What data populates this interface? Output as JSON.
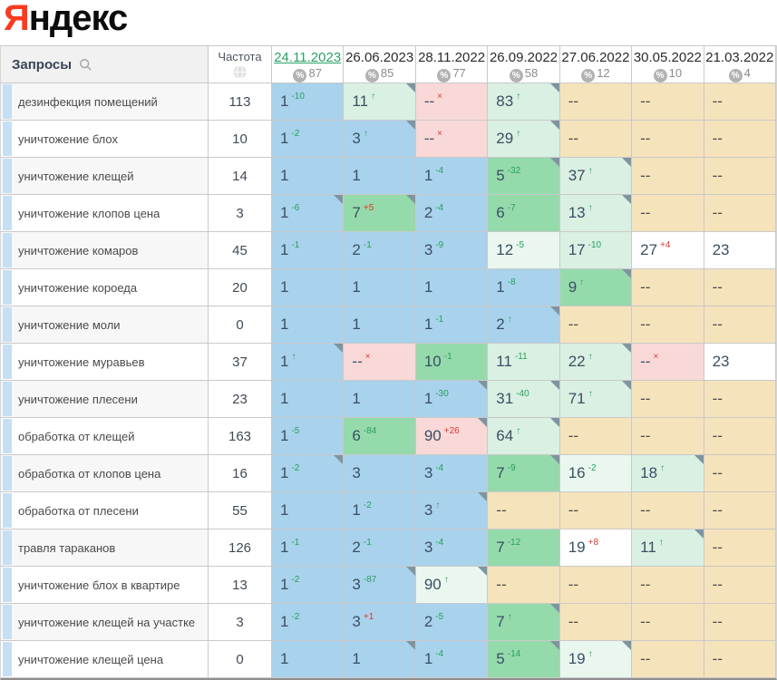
{
  "logo": {
    "red": "Я",
    "rest": "ндекс"
  },
  "colors": {
    "accent_green": "#2aa265",
    "delta_green": "#27a05c",
    "delta_red": "#e0382c",
    "cell_blue": "#a9d2ec",
    "cell_green": "#95daab",
    "cell_mint": "#d9f0e2",
    "cell_palemint": "#e9f7ef",
    "cell_pink": "#f9d8d8",
    "cell_tan": "#f5e3bb",
    "logo_red": "#fb3b1e",
    "row_marker_blue": "#c6dff3"
  },
  "table": {
    "query_header": "Запросы",
    "freq_header": "Частота",
    "columns": [
      {
        "date": "24.11.2023",
        "count": "87",
        "active": true
      },
      {
        "date": "26.06.2023",
        "count": "85"
      },
      {
        "date": "28.11.2022",
        "count": "77"
      },
      {
        "date": "26.09.2022",
        "count": "58"
      },
      {
        "date": "27.06.2022",
        "count": "12"
      },
      {
        "date": "30.05.2022",
        "count": "10"
      },
      {
        "date": "21.03.2022",
        "count": "4"
      }
    ],
    "rows": [
      {
        "query": "дезинфекция помещений",
        "freq": "113",
        "cells": [
          {
            "v": "1",
            "sup": "-10",
            "t": "g",
            "bg": "blue"
          },
          {
            "v": "11",
            "sup": "↑",
            "t": "g",
            "bg": "mint",
            "fold": true
          },
          {
            "v": "--",
            "sup": "×",
            "t": "r",
            "bg": "pink"
          },
          {
            "v": "83",
            "sup": "↑",
            "t": "g",
            "bg": "mint",
            "fold": true
          },
          {
            "v": "--",
            "bg": "tan"
          },
          {
            "v": "--",
            "bg": "tan"
          },
          {
            "v": "--",
            "bg": "tan"
          }
        ]
      },
      {
        "query": "уничтожение блох",
        "freq": "10",
        "cells": [
          {
            "v": "1",
            "sup": "-2",
            "t": "g",
            "bg": "blue"
          },
          {
            "v": "3",
            "sup": "↑",
            "t": "g",
            "bg": "blue",
            "fold": true
          },
          {
            "v": "--",
            "sup": "×",
            "t": "r",
            "bg": "pink"
          },
          {
            "v": "29",
            "sup": "↑",
            "t": "g",
            "bg": "mint",
            "fold": true
          },
          {
            "v": "--",
            "bg": "tan"
          },
          {
            "v": "--",
            "bg": "tan"
          },
          {
            "v": "--",
            "bg": "tan"
          }
        ]
      },
      {
        "query": "уничтожение клещей",
        "freq": "14",
        "cells": [
          {
            "v": "1",
            "bg": "blue"
          },
          {
            "v": "1",
            "bg": "blue"
          },
          {
            "v": "1",
            "sup": "-4",
            "t": "g",
            "bg": "blue"
          },
          {
            "v": "5",
            "sup": "-32",
            "t": "g",
            "bg": "green",
            "fold": true
          },
          {
            "v": "37",
            "sup": "↑",
            "t": "g",
            "bg": "mint",
            "fold": true
          },
          {
            "v": "--",
            "bg": "tan"
          },
          {
            "v": "--",
            "bg": "tan"
          }
        ]
      },
      {
        "query": "уничтожение клопов цена",
        "freq": "3",
        "cells": [
          {
            "v": "1",
            "sup": "-6",
            "t": "g",
            "bg": "blue",
            "fold": true
          },
          {
            "v": "7",
            "sup": "+5",
            "t": "r",
            "bg": "green",
            "fold": true
          },
          {
            "v": "2",
            "sup": "-4",
            "t": "g",
            "bg": "blue"
          },
          {
            "v": "6",
            "sup": "-7",
            "t": "g",
            "bg": "green"
          },
          {
            "v": "13",
            "sup": "↑",
            "t": "g",
            "bg": "mint",
            "fold": true
          },
          {
            "v": "--",
            "bg": "tan"
          },
          {
            "v": "--",
            "bg": "tan"
          }
        ]
      },
      {
        "query": "уничтожение комаров",
        "freq": "45",
        "cells": [
          {
            "v": "1",
            "sup": "-1",
            "t": "g",
            "bg": "blue"
          },
          {
            "v": "2",
            "sup": "-1",
            "t": "g",
            "bg": "blue"
          },
          {
            "v": "3",
            "sup": "-9",
            "t": "g",
            "bg": "blue"
          },
          {
            "v": "12",
            "sup": "-5",
            "t": "g",
            "bg": "palemint"
          },
          {
            "v": "17",
            "sup": "-10",
            "t": "g",
            "bg": "mint"
          },
          {
            "v": "27",
            "sup": "+4",
            "t": "r",
            "bg": "white"
          },
          {
            "v": "23",
            "bg": "white"
          }
        ]
      },
      {
        "query": "уничтожение короеда",
        "freq": "20",
        "cells": [
          {
            "v": "1",
            "bg": "blue"
          },
          {
            "v": "1",
            "bg": "blue"
          },
          {
            "v": "1",
            "bg": "blue"
          },
          {
            "v": "1",
            "sup": "-8",
            "t": "g",
            "bg": "blue"
          },
          {
            "v": "9",
            "sup": "↑",
            "t": "g",
            "bg": "green",
            "fold": true
          },
          {
            "v": "--",
            "bg": "tan"
          },
          {
            "v": "--",
            "bg": "tan"
          }
        ]
      },
      {
        "query": "уничтожение моли",
        "freq": "0",
        "cells": [
          {
            "v": "1",
            "bg": "blue"
          },
          {
            "v": "1",
            "bg": "blue"
          },
          {
            "v": "1",
            "sup": "-1",
            "t": "g",
            "bg": "blue"
          },
          {
            "v": "2",
            "sup": "↑",
            "t": "g",
            "bg": "blue",
            "fold": true
          },
          {
            "v": "--",
            "bg": "tan"
          },
          {
            "v": "--",
            "bg": "tan"
          },
          {
            "v": "--",
            "bg": "tan"
          }
        ]
      },
      {
        "query": "уничтожение муравьев",
        "freq": "37",
        "cells": [
          {
            "v": "1",
            "sup": "↑",
            "t": "g",
            "bg": "blue",
            "fold": true
          },
          {
            "v": "--",
            "sup": "×",
            "t": "r",
            "bg": "pink"
          },
          {
            "v": "10",
            "sup": "-1",
            "t": "g",
            "bg": "green"
          },
          {
            "v": "11",
            "sup": "-11",
            "t": "g",
            "bg": "mint"
          },
          {
            "v": "22",
            "sup": "↑",
            "t": "g",
            "bg": "mint",
            "fold": true
          },
          {
            "v": "--",
            "sup": "×",
            "t": "r",
            "bg": "pink"
          },
          {
            "v": "23",
            "bg": "white"
          }
        ]
      },
      {
        "query": "уничтожение плесени",
        "freq": "23",
        "cells": [
          {
            "v": "1",
            "bg": "blue"
          },
          {
            "v": "1",
            "bg": "blue"
          },
          {
            "v": "1",
            "sup": "-30",
            "t": "g",
            "bg": "blue",
            "fold": true
          },
          {
            "v": "31",
            "sup": "-40",
            "t": "g",
            "bg": "mint",
            "fold": true
          },
          {
            "v": "71",
            "sup": "↑",
            "t": "g",
            "bg": "mint",
            "fold": true
          },
          {
            "v": "--",
            "bg": "tan"
          },
          {
            "v": "--",
            "bg": "tan"
          }
        ]
      },
      {
        "query": "обработка от клещей",
        "freq": "163",
        "cells": [
          {
            "v": "1",
            "sup": "-5",
            "t": "g",
            "bg": "blue"
          },
          {
            "v": "6",
            "sup": "-84",
            "t": "g",
            "bg": "green"
          },
          {
            "v": "90",
            "sup": "+26",
            "t": "r",
            "bg": "pink",
            "fold": true
          },
          {
            "v": "64",
            "sup": "↑",
            "t": "g",
            "bg": "mint",
            "fold": true
          },
          {
            "v": "--",
            "bg": "tan"
          },
          {
            "v": "--",
            "bg": "tan"
          },
          {
            "v": "--",
            "bg": "tan"
          }
        ]
      },
      {
        "query": "обработка от клопов цена",
        "freq": "16",
        "cells": [
          {
            "v": "1",
            "sup": "-2",
            "t": "g",
            "bg": "blue",
            "fold": true
          },
          {
            "v": "3",
            "bg": "blue"
          },
          {
            "v": "3",
            "sup": "-4",
            "t": "g",
            "bg": "blue"
          },
          {
            "v": "7",
            "sup": "-9",
            "t": "g",
            "bg": "green",
            "fold": true
          },
          {
            "v": "16",
            "sup": "-2",
            "t": "g",
            "bg": "palemint"
          },
          {
            "v": "18",
            "sup": "↑",
            "t": "g",
            "bg": "mint",
            "fold": true
          },
          {
            "v": "--",
            "bg": "tan"
          }
        ]
      },
      {
        "query": "обработка от плесени",
        "freq": "55",
        "cells": [
          {
            "v": "1",
            "bg": "blue"
          },
          {
            "v": "1",
            "sup": "-2",
            "t": "g",
            "bg": "blue"
          },
          {
            "v": "3",
            "sup": "↑",
            "t": "g",
            "bg": "blue",
            "fold": true
          },
          {
            "v": "--",
            "bg": "tan"
          },
          {
            "v": "--",
            "bg": "tan"
          },
          {
            "v": "--",
            "bg": "tan"
          },
          {
            "v": "--",
            "bg": "tan"
          }
        ]
      },
      {
        "query": "травля тараканов",
        "freq": "126",
        "cells": [
          {
            "v": "1",
            "sup": "-1",
            "t": "g",
            "bg": "blue"
          },
          {
            "v": "2",
            "sup": "-1",
            "t": "g",
            "bg": "blue"
          },
          {
            "v": "3",
            "sup": "-4",
            "t": "g",
            "bg": "blue"
          },
          {
            "v": "7",
            "sup": "-12",
            "t": "g",
            "bg": "green"
          },
          {
            "v": "19",
            "sup": "+8",
            "t": "r",
            "bg": "white"
          },
          {
            "v": "11",
            "sup": "↑",
            "t": "g",
            "bg": "mint",
            "fold": true
          },
          {
            "v": "--",
            "bg": "tan"
          }
        ]
      },
      {
        "query": "уничтожение блох в квартире",
        "freq": "13",
        "cells": [
          {
            "v": "1",
            "sup": "-2",
            "t": "g",
            "bg": "blue"
          },
          {
            "v": "3",
            "sup": "-87",
            "t": "g",
            "bg": "blue",
            "fold": true
          },
          {
            "v": "90",
            "sup": "↑",
            "t": "g",
            "bg": "palemint",
            "fold": true
          },
          {
            "v": "--",
            "bg": "tan"
          },
          {
            "v": "--",
            "bg": "tan"
          },
          {
            "v": "--",
            "bg": "tan"
          },
          {
            "v": "--",
            "bg": "tan"
          }
        ]
      },
      {
        "query": "уничтожение клещей на участке",
        "freq": "3",
        "cells": [
          {
            "v": "1",
            "sup": "-2",
            "t": "g",
            "bg": "blue"
          },
          {
            "v": "3",
            "sup": "+1",
            "t": "r",
            "bg": "blue"
          },
          {
            "v": "2",
            "sup": "-5",
            "t": "g",
            "bg": "blue"
          },
          {
            "v": "7",
            "sup": "↑",
            "t": "g",
            "bg": "green",
            "fold": true
          },
          {
            "v": "--",
            "bg": "tan"
          },
          {
            "v": "--",
            "bg": "tan"
          },
          {
            "v": "--",
            "bg": "tan"
          }
        ]
      },
      {
        "query": "уничтожение клещей цена",
        "freq": "0",
        "cells": [
          {
            "v": "1",
            "bg": "blue"
          },
          {
            "v": "1",
            "bg": "blue",
            "fold": true
          },
          {
            "v": "1",
            "sup": "-4",
            "t": "g",
            "bg": "blue"
          },
          {
            "v": "5",
            "sup": "-14",
            "t": "g",
            "bg": "green",
            "fold": true
          },
          {
            "v": "19",
            "sup": "↑",
            "t": "g",
            "bg": "palemint",
            "fold": true
          },
          {
            "v": "--",
            "bg": "tan"
          },
          {
            "v": "--",
            "bg": "tan"
          }
        ]
      }
    ]
  }
}
